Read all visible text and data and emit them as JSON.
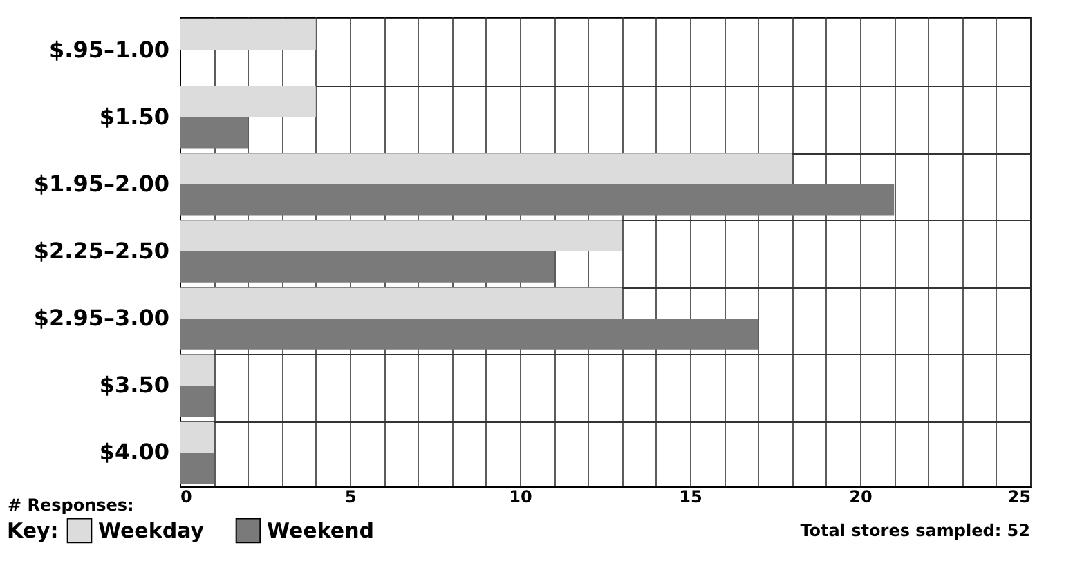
{
  "chart_data": {
    "type": "bar",
    "orientation": "horizontal",
    "categories": [
      "$.95–1.00",
      "$1.50",
      "$1.95–2.00",
      "$2.25–2.50",
      "$2.95–3.00",
      "$3.50",
      "$4.00"
    ],
    "series": [
      {
        "name": "Weekday",
        "color": "#dcdcdc",
        "values": [
          4,
          4,
          18,
          13,
          13,
          1,
          1
        ]
      },
      {
        "name": "Weekend",
        "color": "#7a7a7a",
        "values": [
          0,
          2,
          21,
          11,
          17,
          1,
          1
        ]
      }
    ],
    "xlabel": "# Responses:",
    "legend_title": "Key:",
    "legend": "bottom left",
    "xlim": [
      0,
      25
    ],
    "xticks": [
      0,
      {
        "value": 1,
        "label": null
      },
      {
        "value": 2,
        "label": null
      },
      {
        "value": 3,
        "label": null
      },
      {
        "value": 4,
        "label": null
      },
      5,
      {
        "value": 6,
        "label": null
      },
      {
        "value": 7,
        "label": null
      },
      {
        "value": 8,
        "label": null
      },
      {
        "value": 9,
        "label": null
      },
      10,
      {
        "value": 11,
        "label": null
      },
      {
        "value": 12,
        "label": null
      },
      {
        "value": 13,
        "label": null
      },
      {
        "value": 14,
        "label": null
      },
      15,
      {
        "value": 16,
        "label": null
      },
      {
        "value": 17,
        "label": null
      },
      {
        "value": 18,
        "label": null
      },
      {
        "value": 19,
        "label": null
      },
      20,
      {
        "value": 21,
        "label": null
      },
      {
        "value": 22,
        "label": null
      },
      {
        "value": 23,
        "label": null
      },
      {
        "value": 24,
        "label": null
      },
      25
    ],
    "grid": true,
    "annotations": [
      "Total stores sampled: 52"
    ]
  }
}
